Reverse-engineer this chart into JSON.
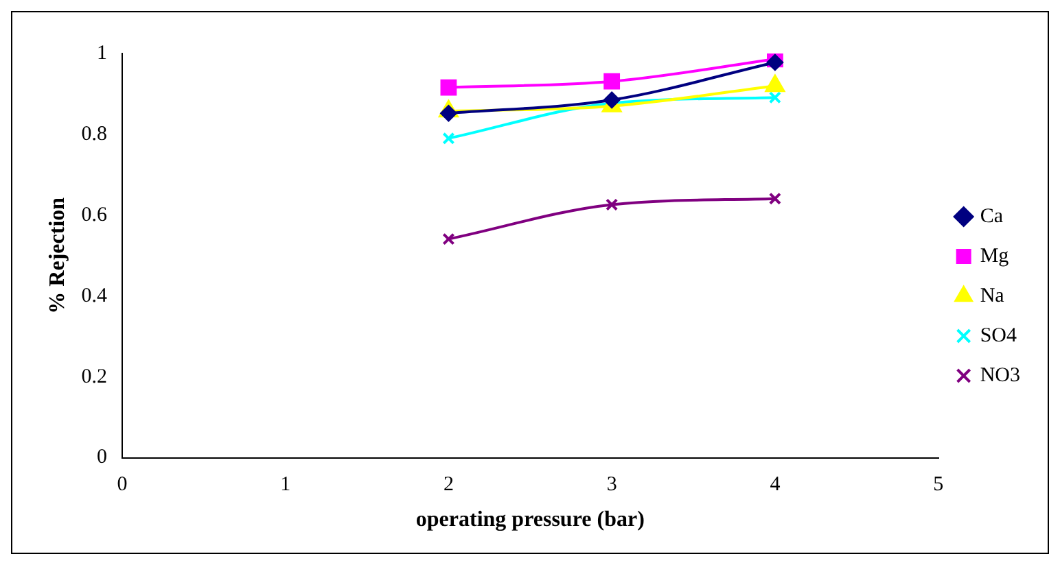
{
  "chart_data": {
    "type": "line",
    "xlabel": "operating pressure (bar)",
    "ylabel": "% Rejection",
    "x": [
      2,
      3,
      4
    ],
    "series": [
      {
        "name": "Ca",
        "color": "#000080",
        "marker": "diamond",
        "values": [
          0.852,
          0.885,
          0.978
        ]
      },
      {
        "name": "Mg",
        "color": "#ff00ff",
        "marker": "square",
        "values": [
          0.916,
          0.931,
          0.986
        ]
      },
      {
        "name": "Na",
        "color": "#ffff00",
        "marker": "triangle",
        "values": [
          0.857,
          0.87,
          0.92
        ]
      },
      {
        "name": "SO4",
        "color": "#00ffff",
        "marker": "cross",
        "values": [
          0.79,
          0.877,
          0.891
        ]
      },
      {
        "name": "NO3",
        "color": "#800080",
        "marker": "cross",
        "values": [
          0.541,
          0.626,
          0.641
        ]
      }
    ],
    "xlim": [
      0,
      5
    ],
    "xticks": [
      0,
      1,
      2,
      3,
      4,
      5
    ],
    "ylim": [
      0,
      1
    ],
    "yticks": [
      0,
      0.2,
      0.4,
      0.6,
      0.8,
      1
    ],
    "grid": false,
    "legend": "right",
    "line_style": "solid"
  }
}
